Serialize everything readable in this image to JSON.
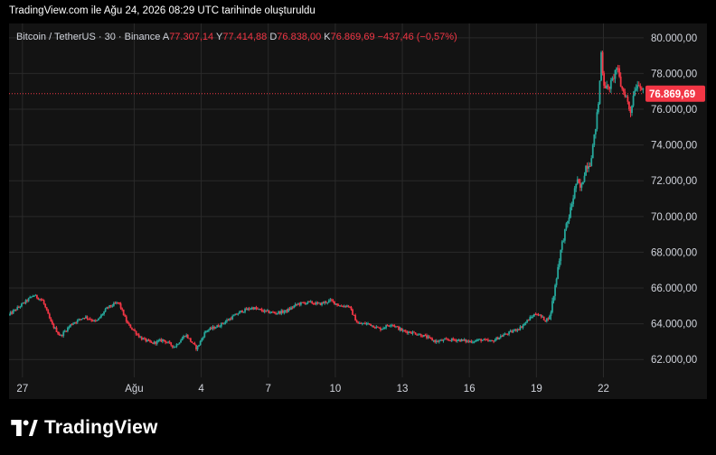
{
  "caption": "TradingView.com ile Ağu 24, 2026 08:29 UTC tarihinde oluşturuldu",
  "legend": {
    "symbol": "Bitcoin / TetherUS · 30 · Binance",
    "open_label": "A",
    "open_value": "77.307,14",
    "high_label": "Y",
    "high_value": "77.414,88",
    "low_label": "D",
    "low_value": "76.838,00",
    "close_label": "K",
    "close_value": "76.869,69",
    "change": "−437,46 (−0,57%)"
  },
  "brand": {
    "name": "TradingView",
    "icon": "tradingview-logo-icon"
  },
  "colors": {
    "up": "#26a69a",
    "down": "#f23645",
    "background": "#131313",
    "grid": "#2a2a2a",
    "text": "#d1d4dc",
    "price_tag": "#f23645"
  },
  "chart_data": {
    "type": "candlestick",
    "title": "Bitcoin / TetherUS · 30 · Binance",
    "xlabel": "",
    "ylabel": "",
    "ylim": [
      61000,
      80800
    ],
    "x_range_days": [
      -0.6,
      27.8
    ],
    "x_ticks": [
      {
        "day": 0,
        "label": "27"
      },
      {
        "day": 5,
        "label": "Ağu"
      },
      {
        "day": 8,
        "label": "4"
      },
      {
        "day": 11,
        "label": "7"
      },
      {
        "day": 14,
        "label": "10"
      },
      {
        "day": 17,
        "label": "13"
      },
      {
        "day": 20,
        "label": "16"
      },
      {
        "day": 23,
        "label": "19"
      },
      {
        "day": 26,
        "label": "22"
      }
    ],
    "y_ticks": [
      {
        "value": 62000,
        "label": "62.000,00"
      },
      {
        "value": 64000,
        "label": "64.000,00"
      },
      {
        "value": 66000,
        "label": "66.000,00"
      },
      {
        "value": 68000,
        "label": "68.000,00"
      },
      {
        "value": 70000,
        "label": "70.000,00"
      },
      {
        "value": 72000,
        "label": "72.000,00"
      },
      {
        "value": 74000,
        "label": "74.000,00"
      },
      {
        "value": 76000,
        "label": "76.000,00"
      },
      {
        "value": 78000,
        "label": "78.000,00"
      },
      {
        "value": 80000,
        "label": "80.000,00"
      }
    ],
    "last_price": {
      "value": 76869.69,
      "label": "76.869,69"
    },
    "close_path": [
      [
        -0.6,
        64500
      ],
      [
        0.0,
        65100
      ],
      [
        0.5,
        65600
      ],
      [
        0.9,
        65300
      ],
      [
        1.3,
        64000
      ],
      [
        1.7,
        63300
      ],
      [
        2.2,
        64000
      ],
      [
        2.8,
        64400
      ],
      [
        3.3,
        64100
      ],
      [
        3.8,
        64900
      ],
      [
        4.3,
        65200
      ],
      [
        4.7,
        64000
      ],
      [
        5.0,
        63600
      ],
      [
        5.3,
        63200
      ],
      [
        5.8,
        62900
      ],
      [
        6.3,
        63100
      ],
      [
        6.8,
        62700
      ],
      [
        7.3,
        63400
      ],
      [
        7.8,
        62600
      ],
      [
        8.2,
        63600
      ],
      [
        8.8,
        63900
      ],
      [
        9.3,
        64300
      ],
      [
        9.8,
        64700
      ],
      [
        10.3,
        64900
      ],
      [
        10.8,
        64700
      ],
      [
        11.3,
        64600
      ],
      [
        11.8,
        64700
      ],
      [
        12.3,
        65100
      ],
      [
        12.8,
        65200
      ],
      [
        13.3,
        65100
      ],
      [
        13.8,
        65300
      ],
      [
        14.2,
        65000
      ],
      [
        14.6,
        65000
      ],
      [
        15.0,
        64000
      ],
      [
        15.5,
        64000
      ],
      [
        16.0,
        63700
      ],
      [
        16.5,
        64000
      ],
      [
        17.0,
        63600
      ],
      [
        17.5,
        63500
      ],
      [
        18.0,
        63300
      ],
      [
        18.5,
        63000
      ],
      [
        19.0,
        63100
      ],
      [
        19.5,
        63100
      ],
      [
        20.0,
        63000
      ],
      [
        20.5,
        63100
      ],
      [
        21.0,
        63000
      ],
      [
        21.4,
        63300
      ],
      [
        21.8,
        63500
      ],
      [
        22.3,
        63800
      ],
      [
        22.7,
        64300
      ],
      [
        23.0,
        64600
      ],
      [
        23.4,
        64200
      ],
      [
        23.6,
        64400
      ],
      [
        23.8,
        65800
      ],
      [
        24.0,
        67500
      ],
      [
        24.2,
        68800
      ],
      [
        24.4,
        69700
      ],
      [
        24.6,
        70800
      ],
      [
        24.8,
        72000
      ],
      [
        25.0,
        71500
      ],
      [
        25.2,
        72800
      ],
      [
        25.4,
        73000
      ],
      [
        25.6,
        74500
      ],
      [
        25.8,
        76600
      ],
      [
        25.9,
        79200
      ],
      [
        26.0,
        77500
      ],
      [
        26.2,
        77100
      ],
      [
        26.4,
        77600
      ],
      [
        26.6,
        78400
      ],
      [
        26.8,
        77200
      ],
      [
        27.0,
        76800
      ],
      [
        27.2,
        75800
      ],
      [
        27.4,
        77200
      ],
      [
        27.6,
        77500
      ],
      [
        27.8,
        76870
      ]
    ]
  }
}
